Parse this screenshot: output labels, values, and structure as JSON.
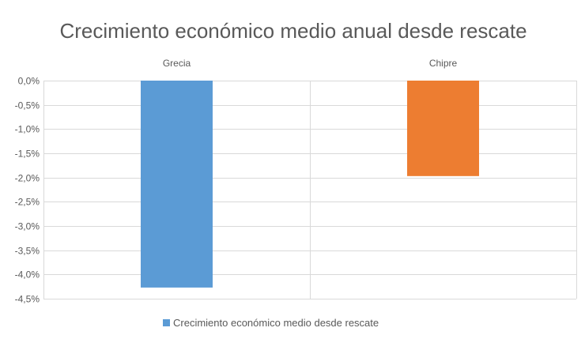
{
  "chart_data": {
    "type": "bar",
    "title": "Crecimiento económico medio anual desde rescate",
    "categories": [
      "Grecia",
      "Chipre"
    ],
    "series": [
      {
        "name": "Crecimiento económico medio desde rescate",
        "values": [
          -4.27,
          -1.97
        ],
        "colors": [
          "#5b9bd5",
          "#ed7d31"
        ]
      }
    ],
    "y_ticks": [
      "0,0%",
      "-0,5%",
      "-1,0%",
      "-1,5%",
      "-2,0%",
      "-2,5%",
      "-3,0%",
      "-3,5%",
      "-4,0%",
      "-4,5%"
    ],
    "y_tick_values": [
      0,
      -0.5,
      -1.0,
      -1.5,
      -2.0,
      -2.5,
      -3.0,
      -3.5,
      -4.0,
      -4.5
    ],
    "ylim": [
      -4.5,
      0
    ],
    "category_axis_position": "top",
    "grid": true,
    "legend_position": "bottom",
    "legend_color": "#5b9bd5"
  }
}
